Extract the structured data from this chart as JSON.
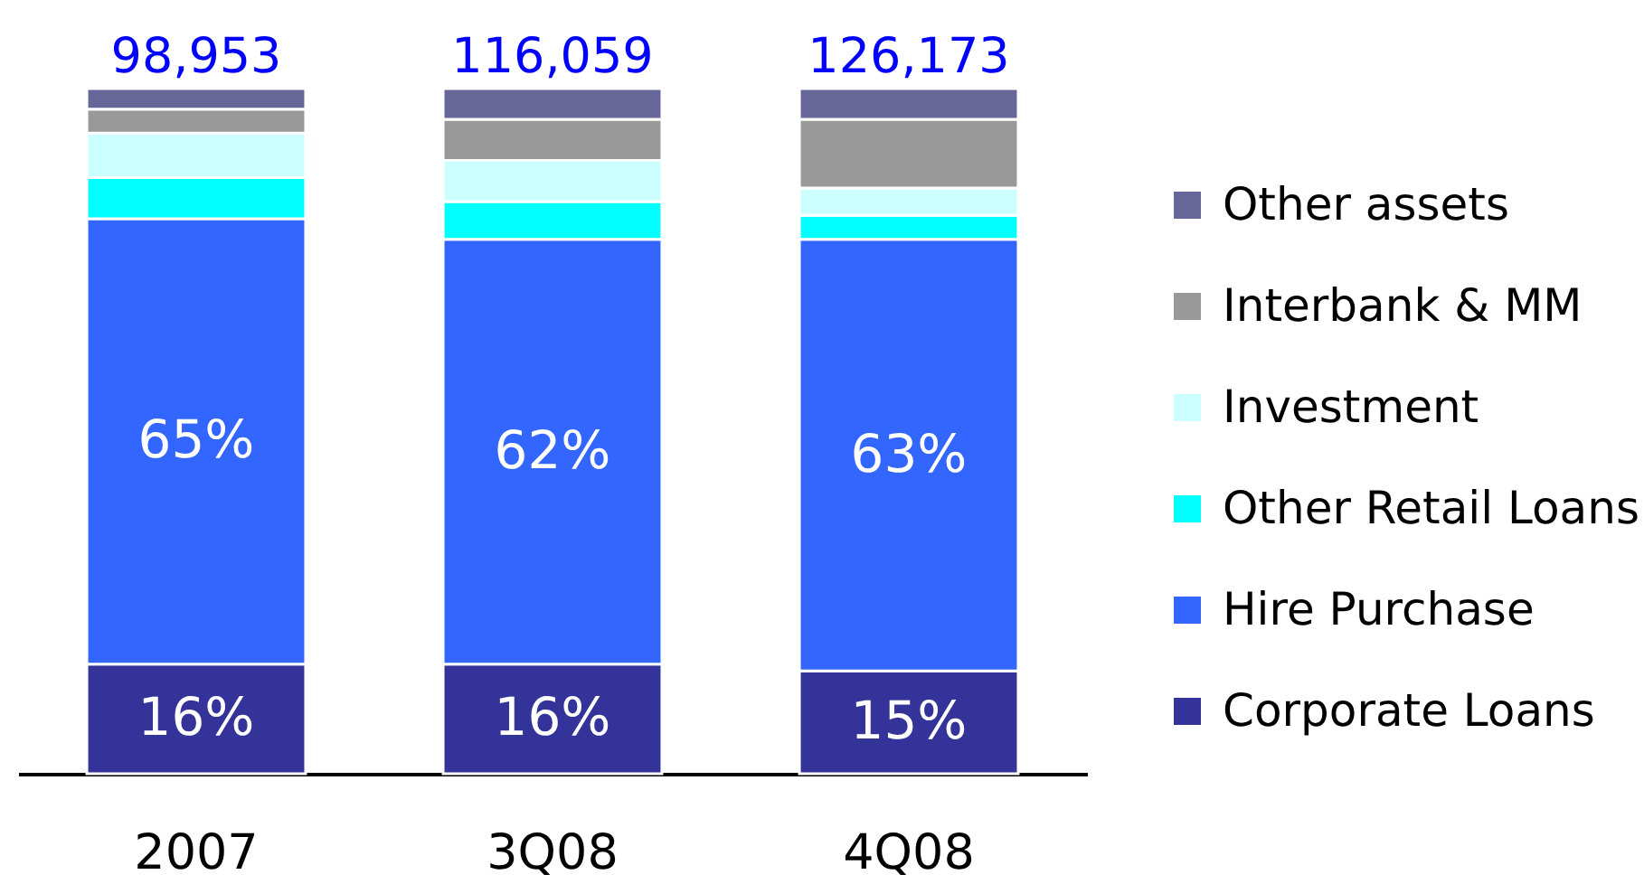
{
  "chart_data": {
    "type": "bar",
    "stacked": true,
    "categories": [
      "2007",
      "3Q08",
      "4Q08"
    ],
    "ylim": [
      0,
      100
    ],
    "tick_labels": "x",
    "legend": "right",
    "annotations": [
      {
        "text": "98,953",
        "x": "2007",
        "y": 100
      },
      {
        "text": "116,059",
        "x": "3Q08",
        "y": 100
      },
      {
        "text": "126,173",
        "x": "4Q08",
        "y": 100
      }
    ],
    "series": [
      {
        "name": "Corporate Loans",
        "color": "#333399",
        "values": [
          16,
          16,
          15
        ],
        "value_labels": [
          "16%",
          "16%",
          "15%"
        ]
      },
      {
        "name": "Hire Purchase",
        "color": "#3366ff",
        "values": [
          65,
          62,
          63
        ],
        "value_labels": [
          "65%",
          "62%",
          "63%"
        ]
      },
      {
        "name": "Other Retail Loans",
        "color": "#00ffff",
        "values": [
          6,
          5.5,
          3.5
        ]
      },
      {
        "name": "Investment",
        "color": "#ccffff",
        "values": [
          6.5,
          6,
          4
        ]
      },
      {
        "name": "Interbank & MM",
        "color": "#999999",
        "values": [
          3.5,
          6,
          10
        ]
      },
      {
        "name": "Other assets",
        "color": "#666699",
        "values": [
          3,
          4.5,
          4.5
        ]
      }
    ]
  }
}
